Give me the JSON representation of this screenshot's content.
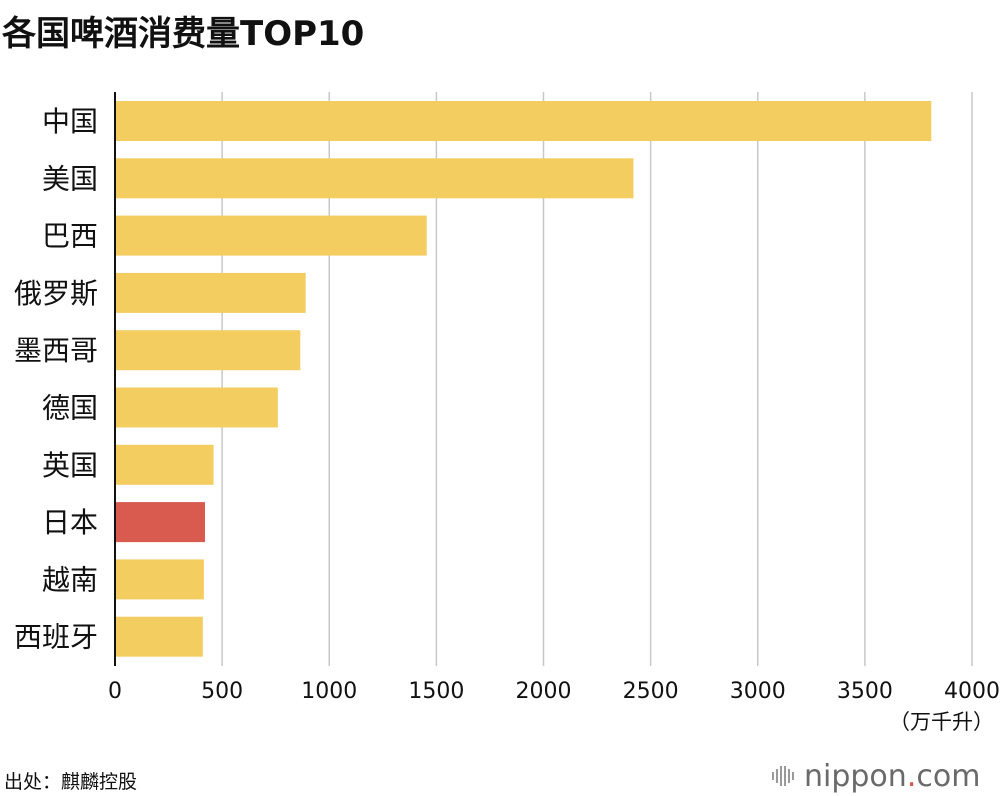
{
  "title": "各国啤酒消费量TOP10",
  "source": "出处：麒麟控股",
  "brand": {
    "prefix": "nippon",
    "dot": ".",
    "suffix": "com"
  },
  "colors": {
    "default_bar": "#f4cd60",
    "highlight_bar": "#d95a4e",
    "grid": "#c8c8c8",
    "axis": "#111111"
  },
  "chart_data": {
    "type": "bar",
    "orientation": "horizontal",
    "categories": [
      "中国",
      "美国",
      "巴西",
      "俄罗斯",
      "墨西哥",
      "德国",
      "英国",
      "日本",
      "越南",
      "西班牙"
    ],
    "values": [
      3810,
      2420,
      1455,
      890,
      865,
      760,
      460,
      420,
      415,
      410
    ],
    "highlight": "日本",
    "xlim": [
      0,
      4000
    ],
    "xticks": [
      0,
      500,
      1000,
      1500,
      2000,
      2500,
      3000,
      3500,
      4000
    ],
    "xunit": "（万千升）",
    "grid": true
  }
}
